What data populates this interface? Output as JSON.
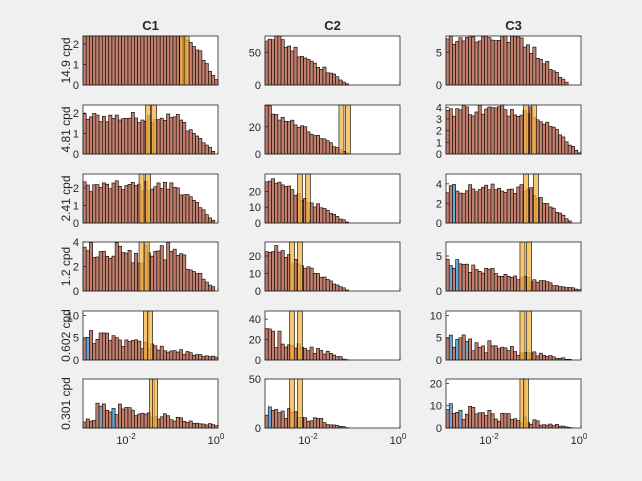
{
  "colors": {
    "background": "#f0f0f0",
    "axes": "#ffffff",
    "bar_face": "#c27f6e",
    "bar_edge": "#000000",
    "overlay_blue": "#6aa6d6",
    "marker_orange": "#f4b544"
  },
  "chart_data": {
    "type": "bar",
    "layout": "3 columns x 6 rows grid of histograms",
    "column_titles": [
      "C1",
      "C2",
      "C3"
    ],
    "row_labels": [
      "14.9 cpd",
      "4.81 cpd",
      "2.41 cpd",
      "1.2 cpd",
      "0.602 cpd",
      "0.301 cpd"
    ],
    "x_scale": "log",
    "xlim": [
      0.001,
      1
    ],
    "x_ticks": [
      {
        "label": "10",
        "sup": "-2"
      },
      {
        "label": "10",
        "sup": "0"
      }
    ],
    "grid": false,
    "panels": [
      [
        {
          "ylim": [
            0,
            2.4
          ],
          "yticks": [
            "0",
            "1",
            "2"
          ],
          "markers": [
            0.16,
            0.2
          ],
          "blue_bins": []
        },
        {
          "ylim": [
            0,
            2.4
          ],
          "yticks": [
            "0",
            "1",
            "2"
          ],
          "markers": [
            0.028,
            0.038
          ],
          "blue_bins": []
        },
        {
          "ylim": [
            0,
            2.8
          ],
          "yticks": [
            "0",
            "1",
            "2"
          ],
          "markers": [
            0.02,
            0.028
          ],
          "blue_bins": []
        },
        {
          "ylim": [
            0,
            4
          ],
          "yticks": [
            "0",
            "2",
            "4"
          ],
          "markers": [
            0.02,
            0.026
          ],
          "blue_bins": []
        },
        {
          "ylim": [
            0,
            11
          ],
          "yticks": [
            "0",
            "5",
            "10"
          ],
          "markers": [
            0.025,
            0.031
          ],
          "blue_bins": [
            1
          ]
        },
        {
          "ylim": [
            0,
            9
          ],
          "yticks": [],
          "markers": [
            0.034,
            0.04
          ],
          "blue_bins": [
            5,
            9
          ]
        }
      ],
      [
        {
          "ylim": [
            0,
            75
          ],
          "yticks": [
            "0",
            "50"
          ],
          "markers": [],
          "blue_bins": []
        },
        {
          "ylim": [
            0,
            36
          ],
          "yticks": [
            "0",
            "20"
          ],
          "markers": [
            0.05,
            0.07
          ],
          "blue_bins": []
        },
        {
          "ylim": [
            0,
            31
          ],
          "yticks": [
            "0",
            "10",
            "20"
          ],
          "markers": [
            0.006,
            0.009
          ],
          "blue_bins": []
        },
        {
          "ylim": [
            0,
            28
          ],
          "yticks": [
            "0",
            "10",
            "20"
          ],
          "markers": [
            0.004,
            0.006
          ],
          "blue_bins": []
        },
        {
          "ylim": [
            0,
            48
          ],
          "yticks": [
            "0",
            "20",
            "40"
          ],
          "markers": [
            0.004,
            0.006
          ],
          "blue_bins": []
        },
        {
          "ylim": [
            0,
            50
          ],
          "yticks": [
            "0",
            "50"
          ],
          "markers": [
            0.004,
            0.006
          ],
          "blue_bins": [
            1
          ]
        }
      ],
      [
        {
          "ylim": [
            0,
            7.5
          ],
          "yticks": [
            "0",
            "5"
          ],
          "markers": [],
          "blue_bins": []
        },
        {
          "ylim": [
            0,
            4.2
          ],
          "yticks": [
            "0",
            "1",
            "2",
            "3",
            "4"
          ],
          "markers": [
            0.06,
            0.09
          ],
          "blue_bins": []
        },
        {
          "ylim": [
            0,
            5
          ],
          "yticks": [
            "0",
            "2",
            "4"
          ],
          "markers": [
            0.06,
            0.1
          ],
          "blue_bins": [
            2
          ]
        },
        {
          "ylim": [
            0,
            7
          ],
          "yticks": [
            "0",
            "5"
          ],
          "markers": [
            0.05,
            0.07
          ],
          "blue_bins": [
            1,
            3
          ]
        },
        {
          "ylim": [
            0,
            11
          ],
          "yticks": [
            "0",
            "5",
            "10"
          ],
          "markers": [
            0.05,
            0.07
          ],
          "blue_bins": [
            1,
            3,
            6
          ]
        },
        {
          "ylim": [
            0,
            22
          ],
          "yticks": [
            "0",
            "10",
            "20"
          ],
          "markers": [
            0.05,
            0.06
          ],
          "blue_bins": [
            1,
            4
          ]
        }
      ]
    ]
  }
}
